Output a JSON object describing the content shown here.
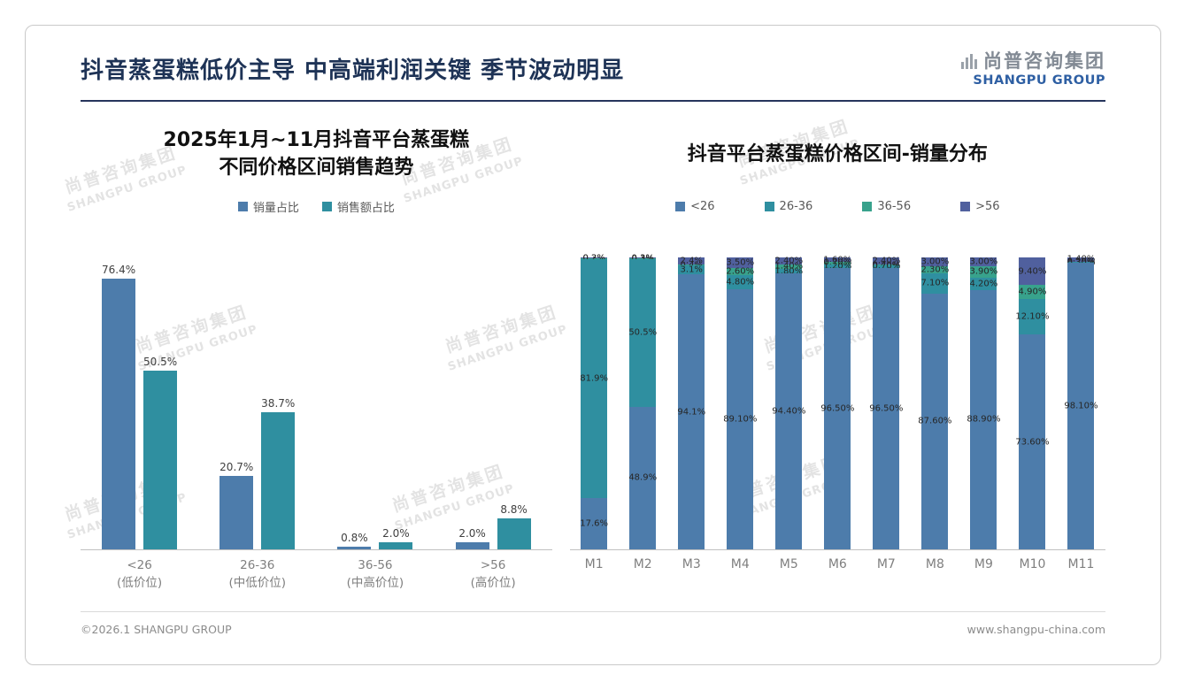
{
  "page": {
    "title": "抖音蒸蛋糕低价主导 中高端利润关键 季节波动明显",
    "logo": {
      "cn": "尚普咨询集团",
      "en": "SHANGPU GROUP"
    },
    "watermark": {
      "cn": "尚普咨询集团",
      "en": "SHANGPU GROUP"
    },
    "footer": {
      "left": "©2026.1 SHANGPU GROUP",
      "right": "www.shangpu-china.com"
    }
  },
  "colors": {
    "title_navy": "#1e3356",
    "logo_blue": "#2e5fa3",
    "series_blue": "#4d7cab",
    "series_teal": "#2f8fa0",
    "series_green": "#38a28c",
    "series_navy": "#50609e"
  },
  "chart_data": [
    {
      "type": "bar",
      "title": "2025年1月~11月抖音平台蒸蛋糕 不同价格区间销售趋势",
      "title_lines": [
        "2025年1月~11月抖音平台蒸蛋糕",
        "不同价格区间销售趋势"
      ],
      "categories": [
        "<26",
        "26-36",
        "36-56",
        ">56"
      ],
      "category_sublabels": [
        "(低价位)",
        "(中低价位)",
        "(中高价位)",
        "(高价位)"
      ],
      "series": [
        {
          "name": "销量占比",
          "color": "#4d7cab",
          "values": [
            76.4,
            20.7,
            0.8,
            2.0
          ],
          "labels": [
            "76.4%",
            "20.7%",
            "0.8%",
            "2.0%"
          ]
        },
        {
          "name": "销售额占比",
          "color": "#2f8fa0",
          "values": [
            50.5,
            38.7,
            2.0,
            8.8
          ],
          "labels": [
            "50.5%",
            "38.7%",
            "2.0%",
            "8.8%"
          ]
        }
      ],
      "xlabel": "",
      "ylabel": "",
      "ylim": [
        0,
        80
      ],
      "grid": false,
      "legend_position": "top"
    },
    {
      "type": "bar",
      "subtype": "stacked-100pct",
      "title": "抖音平台蒸蛋糕价格区间-销量分布",
      "categories": [
        "M1",
        "M2",
        "M3",
        "M4",
        "M5",
        "M6",
        "M7",
        "M8",
        "M9",
        "M10",
        "M11"
      ],
      "series": [
        {
          "name": "<26",
          "color": "#4d7cab",
          "values": [
            17.6,
            48.9,
            94.1,
            89.1,
            94.4,
            96.5,
            96.5,
            87.6,
            88.9,
            73.6,
            98.1
          ],
          "labels": [
            "17.6%",
            "48.9%",
            "94.1%",
            "89.10%",
            "94.40%",
            "96.50%",
            "96.50%",
            "87.60%",
            "88.90%",
            "73.60%",
            "98.10%"
          ]
        },
        {
          "name": "26-36",
          "color": "#2f8fa0",
          "values": [
            81.9,
            50.5,
            3.1,
            4.8,
            1.8,
            1.2,
            0.7,
            7.1,
            4.2,
            12.1,
            0.3
          ],
          "labels": [
            "81.9%",
            "50.5%",
            "3.1%",
            "4.80%",
            "1.80%",
            "1.20%",
            "0.70%",
            "7.10%",
            "4.20%",
            "12.10%",
            "0.30%"
          ]
        },
        {
          "name": "36-56",
          "color": "#38a28c",
          "values": [
            0.2,
            0.3,
            0.4,
            2.6,
            1.4,
            0.7,
            0.4,
            2.3,
            3.9,
            4.9,
            0.2
          ],
          "labels": [
            "0.2%",
            "0.3%",
            "0.4%",
            "2.60%",
            "1.40%",
            "0.70%",
            "0.40%",
            "2.30%",
            "3.90%",
            "4.90%",
            "0.20%"
          ]
        },
        {
          "name": ">56",
          "color": "#50609e",
          "values": [
            0.3,
            0.3,
            2.4,
            3.5,
            2.4,
            1.6,
            2.4,
            3.0,
            3.0,
            9.4,
            1.4
          ],
          "labels": [
            "0.3%",
            "0.3%",
            "2.4%",
            "3.50%",
            "2.40%",
            "1.60%",
            "2.40%",
            "3.00%",
            "3.00%",
            "9.40%",
            "1.40%"
          ]
        }
      ],
      "xlabel": "",
      "ylabel": "",
      "ylim": [
        0,
        100
      ],
      "grid": false,
      "legend_position": "top"
    }
  ]
}
